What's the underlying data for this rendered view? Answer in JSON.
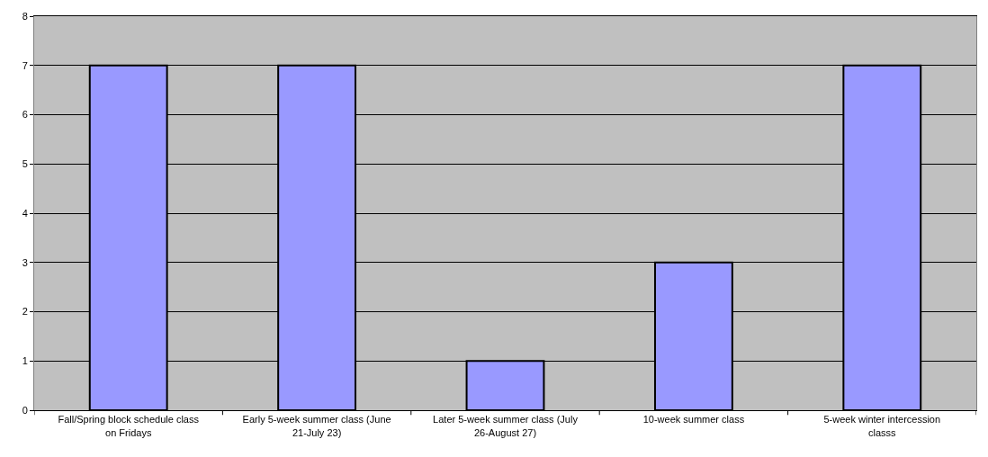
{
  "chart_data": {
    "type": "bar",
    "categories": [
      "Fall/Spring block schedule class on Fridays",
      "Early 5-week summer class (June 21-July 23)",
      "Later 5-week summer class (July 26-August 27)",
      "10-week summer class",
      "5-week winter intercession classs"
    ],
    "values": [
      7,
      7,
      1,
      3,
      7
    ],
    "color": "#9999ff",
    "ylim": [
      0,
      8
    ],
    "yticks": [
      0,
      1,
      2,
      3,
      4,
      5,
      6,
      7,
      8
    ],
    "grid": "y"
  }
}
